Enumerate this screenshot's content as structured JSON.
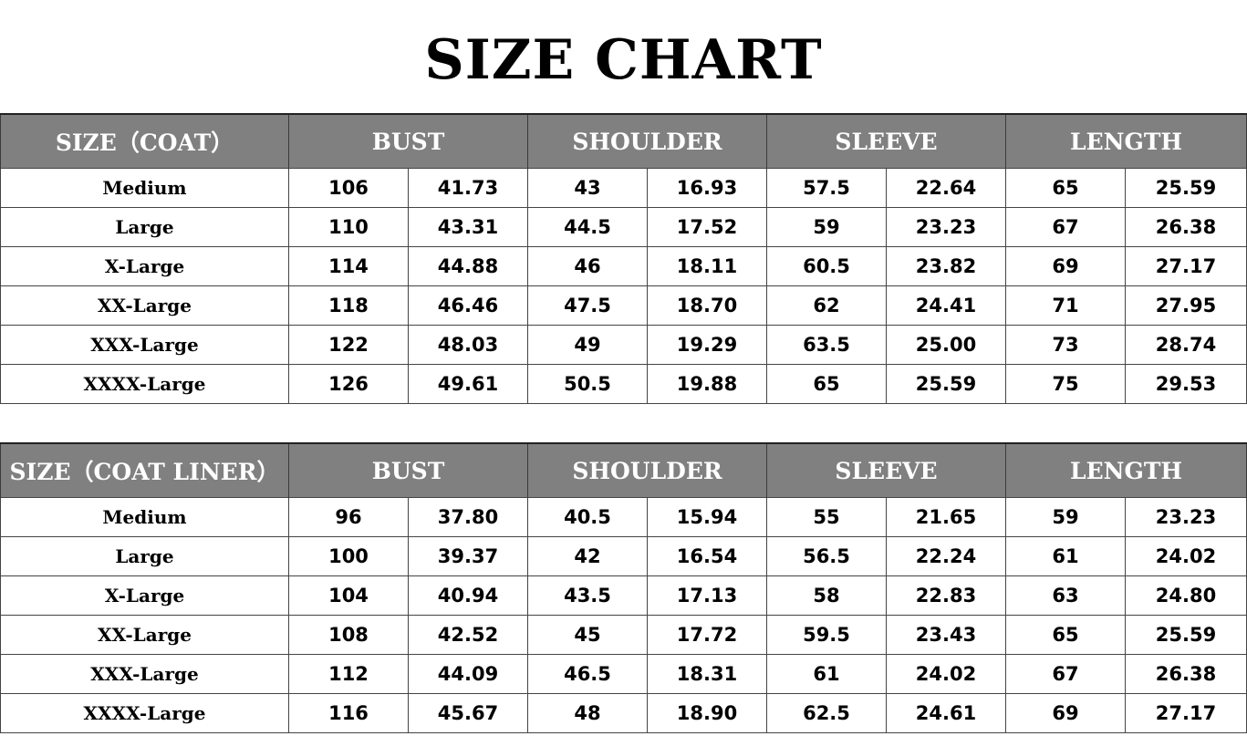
{
  "title": "SIZE CHART",
  "colors": {
    "header_bg": "#808080",
    "header_text": "#ffffff",
    "border": "#444444"
  },
  "tables": [
    {
      "headers": [
        "SIZE（COAT）",
        "BUST",
        "SHOULDER",
        "SLEEVE",
        "LENGTH"
      ],
      "rows": [
        [
          "Medium",
          "106",
          "41.73",
          "43",
          "16.93",
          "57.5",
          "22.64",
          "65",
          "25.59"
        ],
        [
          "Large",
          "110",
          "43.31",
          "44.5",
          "17.52",
          "59",
          "23.23",
          "67",
          "26.38"
        ],
        [
          "X-Large",
          "114",
          "44.88",
          "46",
          "18.11",
          "60.5",
          "23.82",
          "69",
          "27.17"
        ],
        [
          "XX-Large",
          "118",
          "46.46",
          "47.5",
          "18.70",
          "62",
          "24.41",
          "71",
          "27.95"
        ],
        [
          "XXX-Large",
          "122",
          "48.03",
          "49",
          "19.29",
          "63.5",
          "25.00",
          "73",
          "28.74"
        ],
        [
          "XXXX-Large",
          "126",
          "49.61",
          "50.5",
          "19.88",
          "65",
          "25.59",
          "75",
          "29.53"
        ]
      ]
    },
    {
      "headers": [
        "SIZE（COAT LINER）",
        "BUST",
        "SHOULDER",
        "SLEEVE",
        "LENGTH"
      ],
      "rows": [
        [
          "Medium",
          "96",
          "37.80",
          "40.5",
          "15.94",
          "55",
          "21.65",
          "59",
          "23.23"
        ],
        [
          "Large",
          "100",
          "39.37",
          "42",
          "16.54",
          "56.5",
          "22.24",
          "61",
          "24.02"
        ],
        [
          "X-Large",
          "104",
          "40.94",
          "43.5",
          "17.13",
          "58",
          "22.83",
          "63",
          "24.80"
        ],
        [
          "XX-Large",
          "108",
          "42.52",
          "45",
          "17.72",
          "59.5",
          "23.43",
          "65",
          "25.59"
        ],
        [
          "XXX-Large",
          "112",
          "44.09",
          "46.5",
          "18.31",
          "61",
          "24.02",
          "67",
          "26.38"
        ],
        [
          "XXXX-Large",
          "116",
          "45.67",
          "48",
          "18.90",
          "62.5",
          "24.61",
          "69",
          "27.17"
        ]
      ]
    }
  ]
}
